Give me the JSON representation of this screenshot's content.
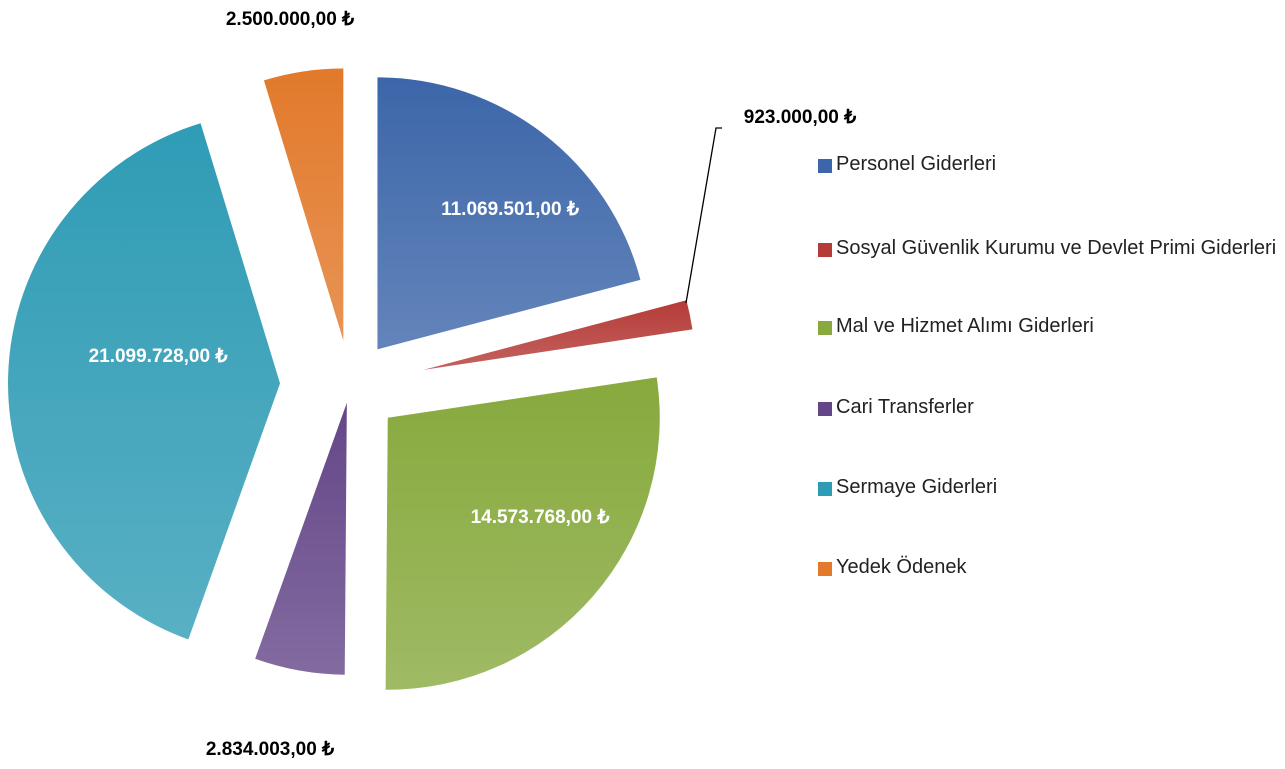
{
  "chart_data": {
    "type": "pie",
    "categories": [
      "Personel Giderleri",
      "Sosyal Güvenlik Kurumu ve Devlet Primi Giderleri",
      "Mal ve Hizmet Alımı Giderleri",
      "Cari Transferler",
      "Sermaye Giderleri",
      "Yedek Ödenek"
    ],
    "values": [
      11069501,
      923000,
      14573768,
      2834003,
      21099728,
      2500000
    ],
    "value_labels": [
      "11.069.501,00 ₺",
      "923.000,00 ₺",
      "14.573.768,00 ₺",
      "2.834.003,00 ₺",
      "21.099.728,00 ₺",
      "2.500.000,00 ₺"
    ],
    "colors": [
      "#3c66a9",
      "#b53b37",
      "#87a93d",
      "#644688",
      "#2f9cb5",
      "#e2792b"
    ],
    "legend": "right"
  }
}
